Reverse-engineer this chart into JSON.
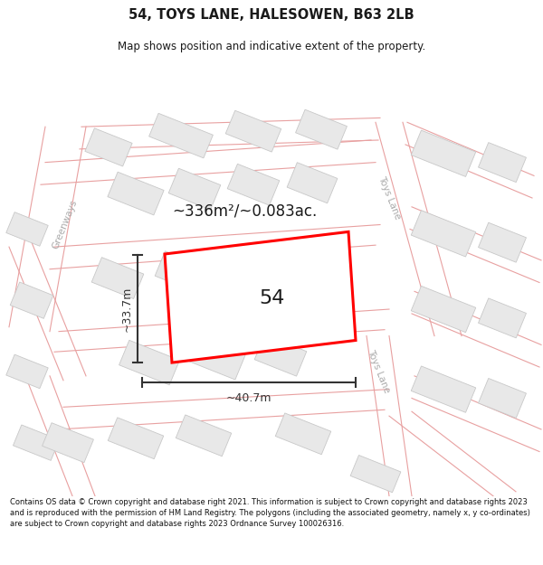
{
  "title": "54, TOYS LANE, HALESOWEN, B63 2LB",
  "subtitle": "Map shows position and indicative extent of the property.",
  "footer": "Contains OS data © Crown copyright and database right 2021. This information is subject to Crown copyright and database rights 2023 and is reproduced with the permission of HM Land Registry. The polygons (including the associated geometry, namely x, y co-ordinates) are subject to Crown copyright and database rights 2023 Ordnance Survey 100026316.",
  "area_label": "~336m²/~0.083ac.",
  "width_label": "~40.7m",
  "height_label": "~33.7m",
  "number_label": "54",
  "bg_color": "#ffffff",
  "road_line_color": "#e8a0a0",
  "block_fc": "#e8e8e8",
  "block_ec": "#c8c8c8",
  "plot_ec": "#ff0000",
  "dim_color": "#333333",
  "street_label_color": "#aaaaaa",
  "title_color": "#1a1a1a"
}
